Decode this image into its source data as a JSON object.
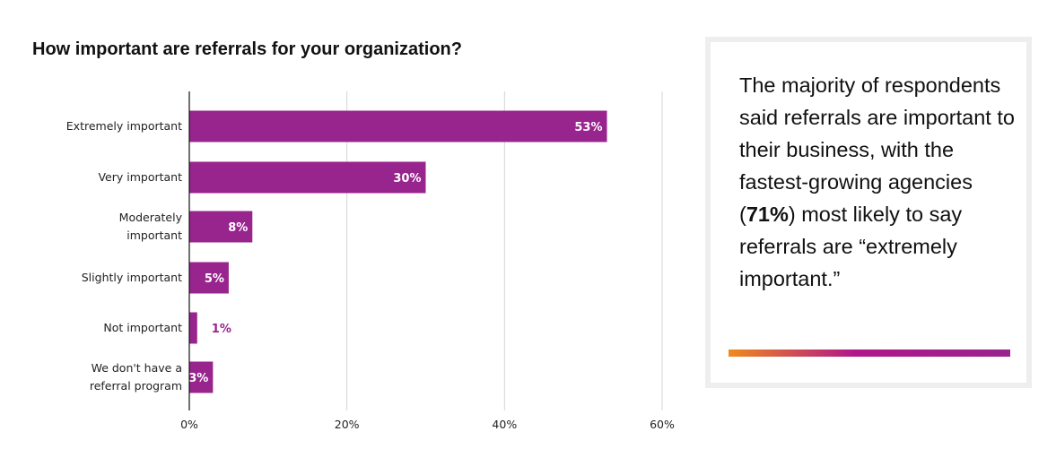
{
  "colors": {
    "bar": "#98248e",
    "bar_label_inside": "#ffffff",
    "gridline": "#d4d4d4",
    "axis": "#111111",
    "gradient_start": "#f08a1e",
    "gradient_mid": "#b0178a",
    "gradient_end": "#98248e"
  },
  "chart_data": {
    "type": "bar",
    "orientation": "horizontal",
    "title": "How important are referrals for your organization?",
    "categories": [
      [
        "Extremely important"
      ],
      [
        "Very important"
      ],
      [
        "Moderately",
        "important"
      ],
      [
        "Slightly important"
      ],
      [
        "Not important"
      ],
      [
        "We don't have a",
        "referral program"
      ]
    ],
    "values": [
      53,
      30,
      8,
      5,
      1,
      3
    ],
    "value_labels": [
      "53%",
      "30%",
      "8%",
      "5%",
      "1%",
      "3%"
    ],
    "xticks": [
      0,
      20,
      40,
      60
    ],
    "xtick_labels": [
      "0%",
      "20%",
      "40%",
      "60%"
    ],
    "xlim": [
      0,
      60
    ],
    "xlabel": "",
    "ylabel": "",
    "grid": true,
    "legend": "none"
  },
  "callout": {
    "text_before": "The majority of respondents said referrals are important to their business, with the fastest-growing agencies (",
    "highlight": "71%",
    "text_after": ") most likely to say referrals are “extremely important.”"
  }
}
